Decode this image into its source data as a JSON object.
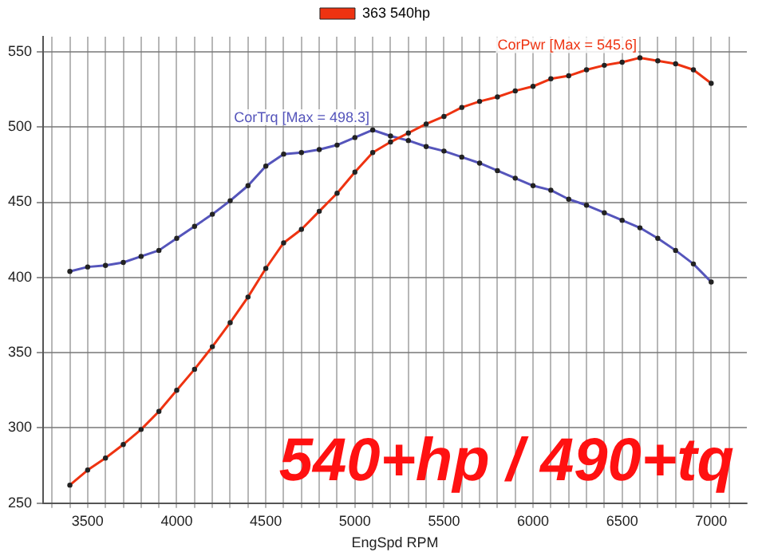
{
  "chart_data": {
    "type": "line",
    "xlabel": "EngSpd RPM",
    "x": [
      3400,
      3500,
      3600,
      3700,
      3800,
      3900,
      4000,
      4100,
      4200,
      4300,
      4400,
      4500,
      4600,
      4700,
      4800,
      4900,
      5000,
      5100,
      5200,
      5300,
      5400,
      5500,
      5600,
      5700,
      5800,
      5900,
      6000,
      6100,
      6200,
      6300,
      6400,
      6500,
      6600,
      6700,
      6800,
      6900,
      7000
    ],
    "series": [
      {
        "name": "363 540hp",
        "color": "#ee3311",
        "values": [
          262,
          272,
          280,
          289,
          299,
          311,
          325,
          339,
          354,
          370,
          387,
          406,
          423,
          432,
          444,
          456,
          470,
          483,
          490,
          496,
          502,
          507,
          513,
          517,
          520,
          524,
          527,
          532,
          534,
          538,
          541,
          543,
          546,
          544,
          542,
          538,
          529
        ]
      },
      {
        "color": "#5555bb",
        "values": [
          404,
          407,
          408,
          410,
          414,
          418,
          426,
          434,
          442,
          451,
          461,
          474,
          482,
          483,
          485,
          488,
          493,
          498,
          494,
          491,
          487,
          484,
          480,
          476,
          471,
          466,
          461,
          458,
          452,
          448,
          443,
          438,
          433,
          426,
          418,
          409,
          397
        ]
      }
    ],
    "xlim": [
      3250,
      7200
    ],
    "ylim": [
      250,
      560
    ],
    "xticks": [
      {
        "value": 3300,
        "label": null
      },
      {
        "value": 3400,
        "label": null
      },
      3500,
      {
        "value": 3600,
        "label": null
      },
      {
        "value": 3700,
        "label": null
      },
      {
        "value": 3800,
        "label": null
      },
      {
        "value": 3900,
        "label": null
      },
      4000,
      {
        "value": 4100,
        "label": null
      },
      {
        "value": 4200,
        "label": null
      },
      {
        "value": 4300,
        "label": null
      },
      {
        "value": 4400,
        "label": null
      },
      4500,
      {
        "value": 4600,
        "label": null
      },
      {
        "value": 4700,
        "label": null
      },
      {
        "value": 4800,
        "label": null
      },
      {
        "value": 4900,
        "label": null
      },
      5000,
      {
        "value": 5100,
        "label": null
      },
      {
        "value": 5200,
        "label": null
      },
      {
        "value": 5300,
        "label": null
      },
      {
        "value": 5400,
        "label": null
      },
      5500,
      {
        "value": 5600,
        "label": null
      },
      {
        "value": 5700,
        "label": null
      },
      {
        "value": 5800,
        "label": null
      },
      {
        "value": 5900,
        "label": null
      },
      6000,
      {
        "value": 6100,
        "label": null
      },
      {
        "value": 6200,
        "label": null
      },
      {
        "value": 6300,
        "label": null
      },
      {
        "value": 6400,
        "label": null
      },
      6500,
      {
        "value": 6600,
        "label": null
      },
      {
        "value": 6700,
        "label": null
      },
      {
        "value": 6800,
        "label": null
      },
      {
        "value": 6900,
        "label": null
      },
      7000,
      {
        "value": 7100,
        "label": null
      }
    ],
    "yticks": [
      250,
      300,
      350,
      400,
      450,
      500,
      550
    ],
    "grid": true,
    "legend": "top",
    "marker": "circle",
    "line_style": "solid",
    "annotations": [
      {
        "text": "CorPwr [Max = 545.6]",
        "x": 6600,
        "y": 546
      },
      {
        "text": "CorTrq [Max = 498.3]",
        "x": 5100,
        "y": 498
      },
      "540+hp / 490+tq"
    ]
  }
}
